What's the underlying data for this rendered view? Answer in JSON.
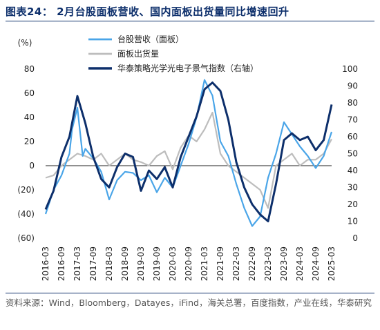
{
  "title": "图表24： 2月台股面板营收、国内面板出货量同比增速回升",
  "source": "资料来源：Wind，Bloomberg，Datayes，iFind，海关总署，百度指数，产业在线，华泰研究",
  "chart_data": {
    "type": "line",
    "left_axis_unit": "(%)",
    "left_ylim": [
      -60,
      80
    ],
    "left_ticks": [
      "80",
      "60",
      "40",
      "20",
      "0",
      "(20)",
      "(40)",
      "(60)"
    ],
    "right_ylim": [
      0,
      100
    ],
    "right_ticks": [
      "100",
      "90",
      "80",
      "70",
      "60",
      "50",
      "40",
      "30",
      "20",
      "10",
      "0"
    ],
    "x_tick_labels": [
      "2016-03",
      "2016-09",
      "2017-03",
      "2017-09",
      "2018-03",
      "2018-09",
      "2019-03",
      "2019-09",
      "2020-03",
      "2020-09",
      "2021-03",
      "2021-09",
      "2022-03",
      "2022-09",
      "2023-03",
      "2023-09",
      "2024-03",
      "2024-09",
      "2025-03"
    ],
    "x_range": [
      "2016-03",
      "2025-03"
    ],
    "legend": {
      "position": "top-left"
    },
    "colors": {
      "series1": "#4aa5e8",
      "series2": "#bdbdbd",
      "series3": "#0d2f6b"
    },
    "series": [
      {
        "name": "台股营收（面板）",
        "axis": "left",
        "points": [
          [
            "2016-03",
            -40
          ],
          [
            "2016-06",
            -20
          ],
          [
            "2016-09",
            -8
          ],
          [
            "2016-12",
            10
          ],
          [
            "2017-01",
            30
          ],
          [
            "2017-03",
            48
          ],
          [
            "2017-05",
            8
          ],
          [
            "2017-06",
            14
          ],
          [
            "2017-09",
            6
          ],
          [
            "2017-12",
            -5
          ],
          [
            "2018-03",
            -28
          ],
          [
            "2018-06",
            -12
          ],
          [
            "2018-09",
            -5
          ],
          [
            "2018-12",
            -6
          ],
          [
            "2019-03",
            -12
          ],
          [
            "2019-06",
            -8
          ],
          [
            "2019-09",
            -22
          ],
          [
            "2019-12",
            -10
          ],
          [
            "2020-03",
            -18
          ],
          [
            "2020-06",
            0
          ],
          [
            "2020-09",
            18
          ],
          [
            "2020-12",
            40
          ],
          [
            "2021-03",
            71
          ],
          [
            "2021-06",
            58
          ],
          [
            "2021-09",
            20
          ],
          [
            "2021-12",
            8
          ],
          [
            "2022-03",
            -15
          ],
          [
            "2022-06",
            -35
          ],
          [
            "2022-09",
            -50
          ],
          [
            "2022-12",
            -42
          ],
          [
            "2023-03",
            -10
          ],
          [
            "2023-06",
            10
          ],
          [
            "2023-09",
            36
          ],
          [
            "2023-12",
            26
          ],
          [
            "2024-03",
            16
          ],
          [
            "2024-06",
            8
          ],
          [
            "2024-09",
            -2
          ],
          [
            "2024-12",
            8
          ],
          [
            "2025-03",
            28
          ]
        ]
      },
      {
        "name": "面板出货量",
        "axis": "left",
        "points": [
          [
            "2016-03",
            -10
          ],
          [
            "2016-06",
            -8
          ],
          [
            "2016-09",
            0
          ],
          [
            "2016-12",
            5
          ],
          [
            "2017-03",
            10
          ],
          [
            "2017-06",
            8
          ],
          [
            "2017-09",
            5
          ],
          [
            "2017-12",
            10
          ],
          [
            "2018-03",
            0
          ],
          [
            "2018-06",
            5
          ],
          [
            "2018-09",
            10
          ],
          [
            "2018-12",
            5
          ],
          [
            "2019-03",
            3
          ],
          [
            "2019-06",
            0
          ],
          [
            "2019-09",
            8
          ],
          [
            "2019-12",
            12
          ],
          [
            "2020-03",
            -3
          ],
          [
            "2020-06",
            15
          ],
          [
            "2020-09",
            25
          ],
          [
            "2020-12",
            20
          ],
          [
            "2021-03",
            30
          ],
          [
            "2021-06",
            44
          ],
          [
            "2021-09",
            10
          ],
          [
            "2021-12",
            0
          ],
          [
            "2022-03",
            -5
          ],
          [
            "2022-06",
            -10
          ],
          [
            "2022-09",
            -15
          ],
          [
            "2022-12",
            -20
          ],
          [
            "2023-03",
            -35
          ],
          [
            "2023-06",
            0
          ],
          [
            "2023-09",
            5
          ],
          [
            "2023-12",
            10
          ],
          [
            "2024-03",
            0
          ],
          [
            "2024-06",
            5
          ],
          [
            "2024-09",
            5
          ],
          [
            "2024-12",
            10
          ],
          [
            "2025-03",
            22
          ]
        ]
      },
      {
        "name": "华泰策略光学光电子景气指数（右轴）",
        "axis": "right",
        "points": [
          [
            "2016-03",
            17
          ],
          [
            "2016-06",
            28
          ],
          [
            "2016-09",
            48
          ],
          [
            "2016-12",
            60
          ],
          [
            "2017-03",
            84
          ],
          [
            "2017-06",
            68
          ],
          [
            "2017-09",
            48
          ],
          [
            "2017-12",
            35
          ],
          [
            "2018-03",
            30
          ],
          [
            "2018-06",
            42
          ],
          [
            "2018-09",
            50
          ],
          [
            "2018-12",
            48
          ],
          [
            "2019-03",
            28
          ],
          [
            "2019-06",
            40
          ],
          [
            "2019-09",
            35
          ],
          [
            "2019-12",
            42
          ],
          [
            "2020-03",
            30
          ],
          [
            "2020-06",
            48
          ],
          [
            "2020-09",
            60
          ],
          [
            "2020-12",
            72
          ],
          [
            "2021-03",
            88
          ],
          [
            "2021-06",
            92
          ],
          [
            "2021-09",
            87
          ],
          [
            "2021-12",
            70
          ],
          [
            "2022-03",
            45
          ],
          [
            "2022-06",
            30
          ],
          [
            "2022-09",
            20
          ],
          [
            "2022-12",
            14
          ],
          [
            "2023-03",
            10
          ],
          [
            "2023-06",
            32
          ],
          [
            "2023-09",
            58
          ],
          [
            "2023-12",
            62
          ],
          [
            "2024-03",
            58
          ],
          [
            "2024-06",
            60
          ],
          [
            "2024-09",
            52
          ],
          [
            "2024-12",
            58
          ],
          [
            "2025-03",
            79
          ]
        ]
      }
    ]
  }
}
